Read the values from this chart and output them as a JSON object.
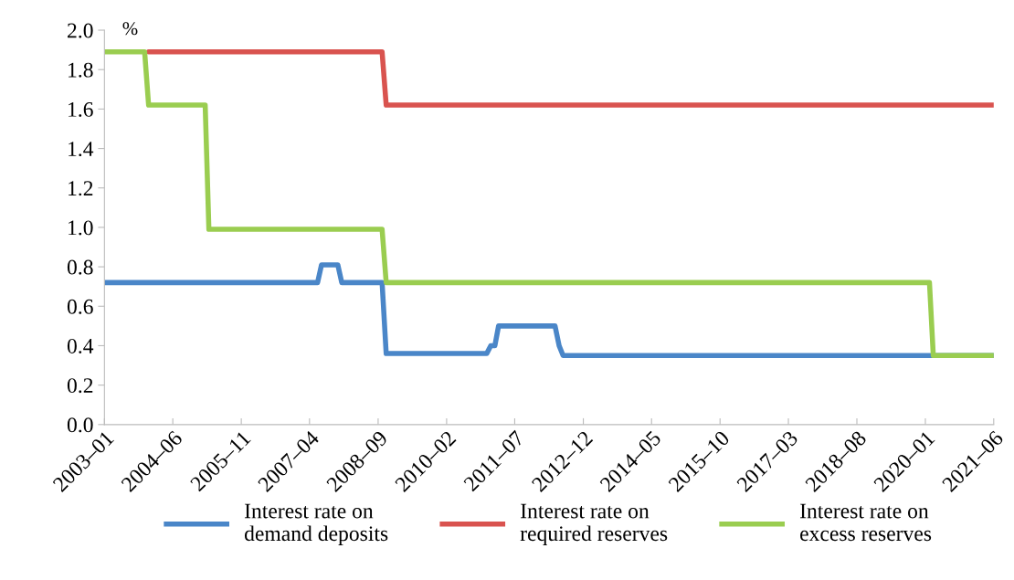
{
  "chart_data": {
    "type": "line",
    "ylabel": "%",
    "ylim": [
      0,
      2.0
    ],
    "yticks": [
      {
        "value": 0,
        "label": "0.0"
      },
      {
        "value": 0.2,
        "label": "0.2"
      },
      {
        "value": 0.4,
        "label": "0.4"
      },
      {
        "value": 0.6,
        "label": "0.6"
      },
      {
        "value": 0.8,
        "label": "0.8"
      },
      {
        "value": 1.0,
        "label": "1.0"
      },
      {
        "value": 1.2,
        "label": "1.2"
      },
      {
        "value": 1.4,
        "label": "1.4"
      },
      {
        "value": 1.6,
        "label": "1.6"
      },
      {
        "value": 1.8,
        "label": "1.8"
      },
      {
        "value": 2.0,
        "label": "2.0"
      }
    ],
    "xlim": [
      "2003-01",
      "2021-06"
    ],
    "xticks": [
      {
        "value": "2003-01",
        "label": "2003–01"
      },
      {
        "value": "2004-06",
        "label": "2004–06"
      },
      {
        "value": "2005-11",
        "label": "2005–11"
      },
      {
        "value": "2007-04",
        "label": "2007–04"
      },
      {
        "value": "2008-09",
        "label": "2008–09"
      },
      {
        "value": "2010-02",
        "label": "2010–02"
      },
      {
        "value": "2011-07",
        "label": "2011–07"
      },
      {
        "value": "2012-12",
        "label": "2012–12"
      },
      {
        "value": "2014-05",
        "label": "2014–05"
      },
      {
        "value": "2015-10",
        "label": "2015–10"
      },
      {
        "value": "2017-03",
        "label": "2017–03"
      },
      {
        "value": "2018-08",
        "label": "2018–08"
      },
      {
        "value": "2020-01",
        "label": "2020–01"
      },
      {
        "value": "2021-06",
        "label": "2021–06"
      }
    ],
    "grid": false,
    "legend": "bottom",
    "marker": "none",
    "line_style": "solid",
    "series": [
      {
        "name": "Interest rate on\ndemand deposits",
        "color": "#4a86c8",
        "x": [
          "2003-01",
          "2007-06",
          "2007-07",
          "2007-11",
          "2007-12",
          "2008-10",
          "2008-11",
          "2010-12",
          "2011-01",
          "2011-02",
          "2011-03",
          "2012-05",
          "2012-06",
          "2012-07",
          "2021-06"
        ],
        "values": [
          0.72,
          0.72,
          0.81,
          0.81,
          0.72,
          0.72,
          0.36,
          0.36,
          0.4,
          0.4,
          0.5,
          0.5,
          0.4,
          0.35,
          0.35
        ]
      },
      {
        "name": "Interest rate on\nrequired reserves",
        "color": "#d9534f",
        "x": [
          "2003-12",
          "2008-10",
          "2008-11",
          "2021-06"
        ],
        "values": [
          1.89,
          1.89,
          1.62,
          1.62
        ]
      },
      {
        "name": "Interest rate on\nexcess reserves",
        "color": "#9acd50",
        "x": [
          "2003-01",
          "2003-11",
          "2003-12",
          "2005-02",
          "2005-03",
          "2008-10",
          "2008-11",
          "2020-02",
          "2020-03",
          "2021-06"
        ],
        "values": [
          1.89,
          1.89,
          1.62,
          1.62,
          0.99,
          0.99,
          0.72,
          0.72,
          0.35,
          0.35
        ]
      }
    ]
  }
}
